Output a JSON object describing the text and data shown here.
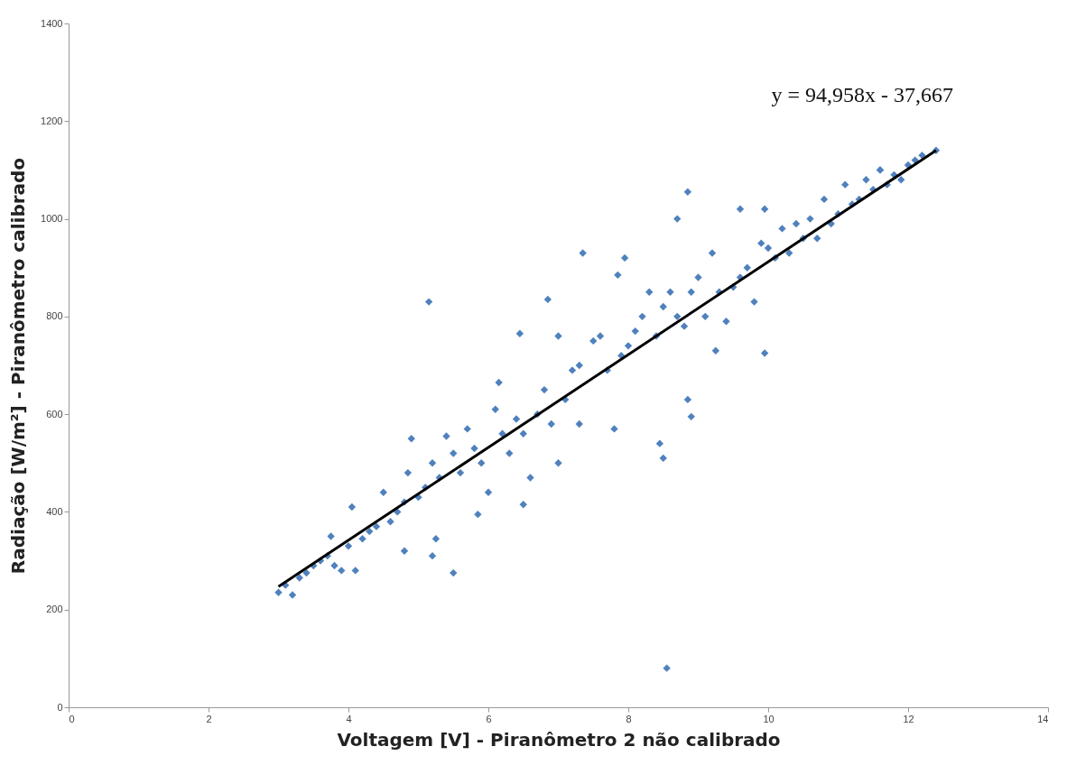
{
  "chart_data": {
    "type": "scatter",
    "xlabel": "Voltagem [V] - Piranômetro 2 não calibrado",
    "ylabel": "Radiação [W/m²] - Piranômetro calibrado",
    "annotations": [
      "y = 94,958x - 37,667"
    ],
    "xlim": [
      0,
      14
    ],
    "xticks": [
      0,
      2,
      4,
      6,
      8,
      10,
      12,
      14
    ],
    "ylim": [
      0,
      1400
    ],
    "yticks": [
      0,
      200,
      400,
      600,
      800,
      1000,
      1200,
      1400
    ],
    "grid": false,
    "marker": "diamond",
    "series": [
      {
        "color": "#4f81bd",
        "x": [
          3.0,
          3.1,
          3.2,
          3.3,
          3.4,
          3.5,
          3.6,
          3.7,
          3.75,
          3.8,
          3.9,
          4.0,
          4.05,
          4.1,
          4.2,
          4.3,
          4.4,
          4.5,
          4.6,
          4.7,
          4.8,
          4.85,
          4.9,
          5.0,
          5.1,
          5.2,
          5.3,
          5.4,
          5.5,
          5.6,
          5.7,
          5.8,
          5.9,
          6.0,
          6.1,
          6.15,
          6.2,
          6.3,
          6.4,
          6.5,
          6.6,
          6.7,
          6.8,
          6.9,
          7.0,
          7.0,
          7.1,
          7.2,
          7.3,
          7.3,
          7.5,
          7.6,
          7.7,
          7.8,
          7.9,
          8.0,
          8.1,
          8.2,
          8.3,
          8.4,
          8.5,
          8.6,
          8.7,
          8.8,
          8.9,
          9.0,
          9.1,
          9.2,
          9.3,
          9.4,
          9.5,
          9.6,
          9.7,
          9.8,
          9.9,
          10.0,
          10.1,
          10.2,
          10.3,
          10.4,
          10.5,
          10.6,
          10.7,
          10.8,
          10.9,
          11.0,
          11.1,
          11.2,
          11.3,
          11.4,
          11.5,
          11.6,
          11.7,
          11.8,
          11.9,
          12.0,
          12.1,
          12.2,
          12.4,
          5.15,
          7.35,
          6.45,
          6.85,
          8.85,
          8.7,
          8.55,
          8.45,
          8.5,
          8.85,
          8.9,
          9.95,
          5.5,
          5.25,
          5.2,
          4.8,
          6.5,
          5.85,
          7.95,
          7.85,
          9.6,
          9.95,
          11.6,
          9.25
        ],
        "values": [
          235,
          250,
          230,
          265,
          275,
          290,
          300,
          310,
          350,
          290,
          280,
          330,
          410,
          280,
          345,
          360,
          370,
          440,
          380,
          400,
          420,
          480,
          550,
          430,
          450,
          500,
          470,
          555,
          520,
          480,
          570,
          530,
          500,
          440,
          610,
          665,
          560,
          520,
          590,
          560,
          470,
          600,
          650,
          580,
          760,
          500,
          630,
          690,
          700,
          580,
          750,
          760,
          690,
          570,
          720,
          740,
          770,
          800,
          850,
          760,
          820,
          850,
          800,
          780,
          850,
          880,
          800,
          930,
          850,
          790,
          860,
          880,
          900,
          830,
          950,
          940,
          920,
          980,
          930,
          990,
          960,
          1000,
          960,
          1040,
          990,
          1010,
          1070,
          1030,
          1040,
          1080,
          1060,
          1100,
          1070,
          1090,
          1080,
          1110,
          1120,
          1130,
          1140,
          830,
          930,
          765,
          835,
          1055,
          1000,
          80,
          540,
          510,
          630,
          595,
          725,
          275,
          345,
          310,
          320,
          415,
          395,
          920,
          885,
          1020,
          1020,
          1100,
          730
        ]
      },
      {
        "type": "line",
        "marker": "none",
        "color": "#000000",
        "x": [
          3.0,
          12.4
        ],
        "values": [
          247,
          1140
        ]
      }
    ]
  }
}
